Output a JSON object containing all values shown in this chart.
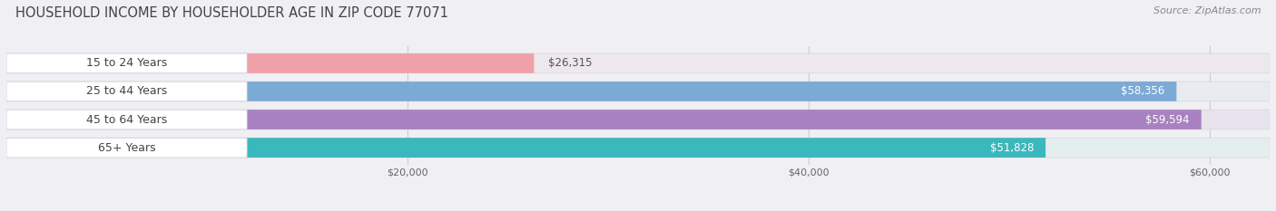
{
  "title": "HOUSEHOLD INCOME BY HOUSEHOLDER AGE IN ZIP CODE 77071",
  "source": "Source: ZipAtlas.com",
  "categories": [
    "15 to 24 Years",
    "25 to 44 Years",
    "45 to 64 Years",
    "65+ Years"
  ],
  "values": [
    26315,
    58356,
    59594,
    51828
  ],
  "bar_colors": [
    "#f0a0a8",
    "#7baad4",
    "#a882c0",
    "#3ab8bc"
  ],
  "bar_bg_colors": [
    "#ede8ec",
    "#e8ecf0",
    "#e8e4ee",
    "#e4eeee"
  ],
  "value_labels": [
    "$26,315",
    "$58,356",
    "$59,594",
    "$51,828"
  ],
  "label_on_bar": [
    false,
    true,
    true,
    true
  ],
  "xlim_max": 63000,
  "xticks": [
    20000,
    40000,
    60000
  ],
  "xtick_labels": [
    "$20,000",
    "$40,000",
    "$60,000"
  ],
  "background_color": "#f0eff4",
  "title_fontsize": 10.5,
  "source_fontsize": 8,
  "bar_label_fontsize": 8.5,
  "cat_label_fontsize": 9
}
